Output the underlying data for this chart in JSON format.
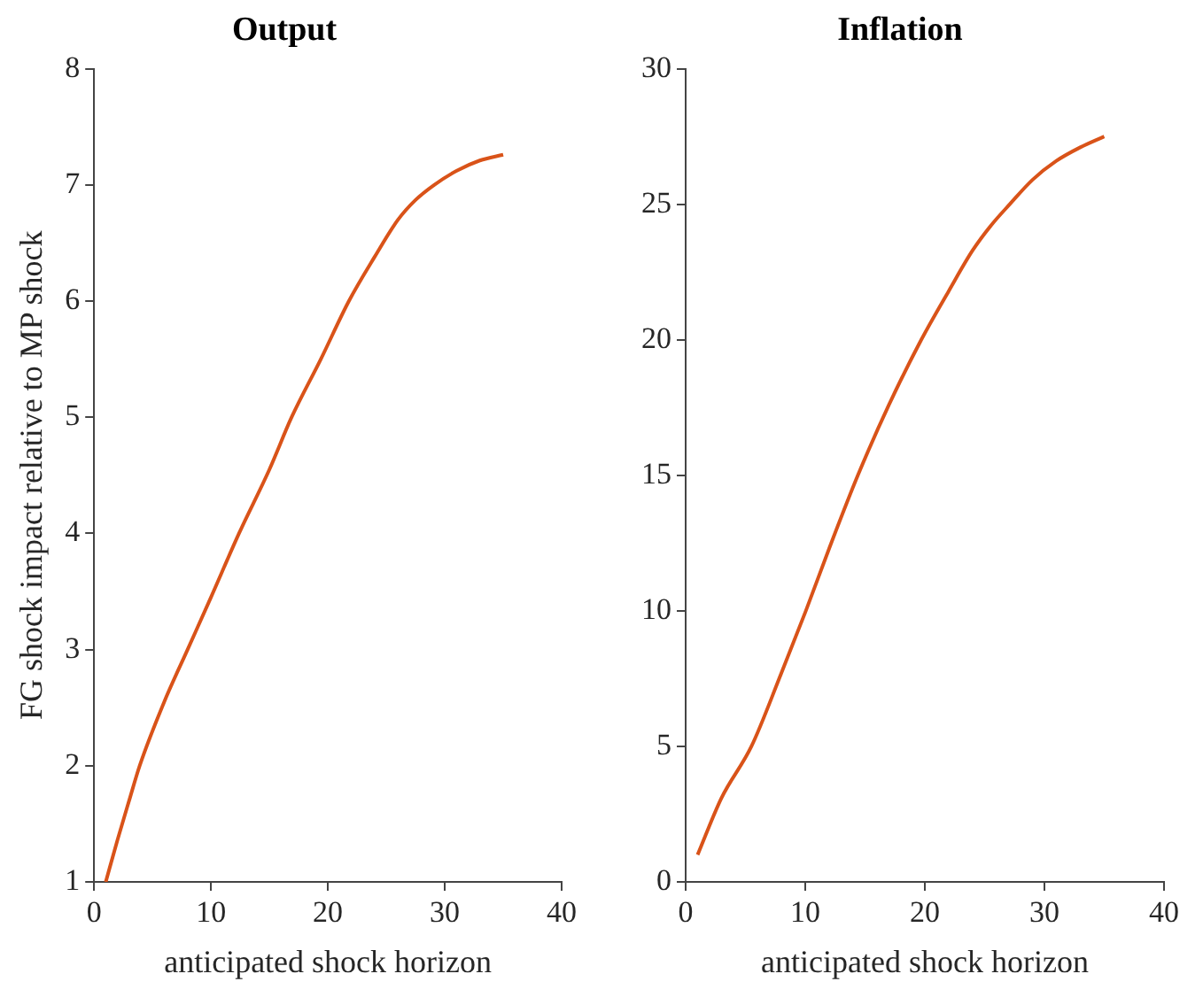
{
  "chart_data": [
    {
      "type": "line",
      "title": "Output",
      "xlabel": "anticipated shock horizon",
      "ylabel": "FG shock impact relative to MP shock",
      "x": [
        1,
        2,
        3,
        3.9,
        6,
        8,
        10,
        12.4,
        15,
        16.9,
        19.4,
        21.8,
        24,
        26,
        27.5,
        29.1,
        31,
        33,
        35
      ],
      "series": [
        {
          "color": "#d95319",
          "values": [
            1,
            1.36,
            1.7,
            2,
            2.55,
            3,
            3.45,
            4,
            4.55,
            5,
            5.5,
            6,
            6.38,
            6.7,
            6.87,
            7,
            7.12,
            7.21,
            7.26
          ]
        }
      ],
      "xlim": [
        0,
        40
      ],
      "xticks": [
        0,
        10,
        20,
        30,
        40
      ],
      "ylim": [
        1,
        8
      ],
      "yticks": [
        1,
        2,
        3,
        4,
        5,
        6,
        7,
        8
      ],
      "grid": false,
      "legend": false,
      "marker": "none",
      "line_style": "solid"
    },
    {
      "type": "line",
      "title": "Inflation",
      "xlabel": "anticipated shock horizon",
      "x": [
        1,
        3,
        5.5,
        8,
        10.05,
        12,
        14.4,
        17,
        19.7,
        22,
        24,
        25.5,
        27.1,
        29,
        31,
        33,
        35
      ],
      "series": [
        {
          "color": "#d95319",
          "values": [
            1,
            3.1,
            5,
            7.7,
            10,
            12.3,
            15,
            17.6,
            20,
            21.8,
            23.3,
            24.2,
            25,
            25.9,
            26.6,
            27.1,
            27.5
          ]
        }
      ],
      "xlim": [
        0,
        40
      ],
      "xticks": [
        0,
        10,
        20,
        30,
        40
      ],
      "ylim": [
        0,
        30
      ],
      "yticks": [
        0,
        5,
        10,
        15,
        20,
        25,
        30
      ],
      "grid": false,
      "legend": false,
      "marker": "none",
      "line_style": "solid"
    }
  ]
}
